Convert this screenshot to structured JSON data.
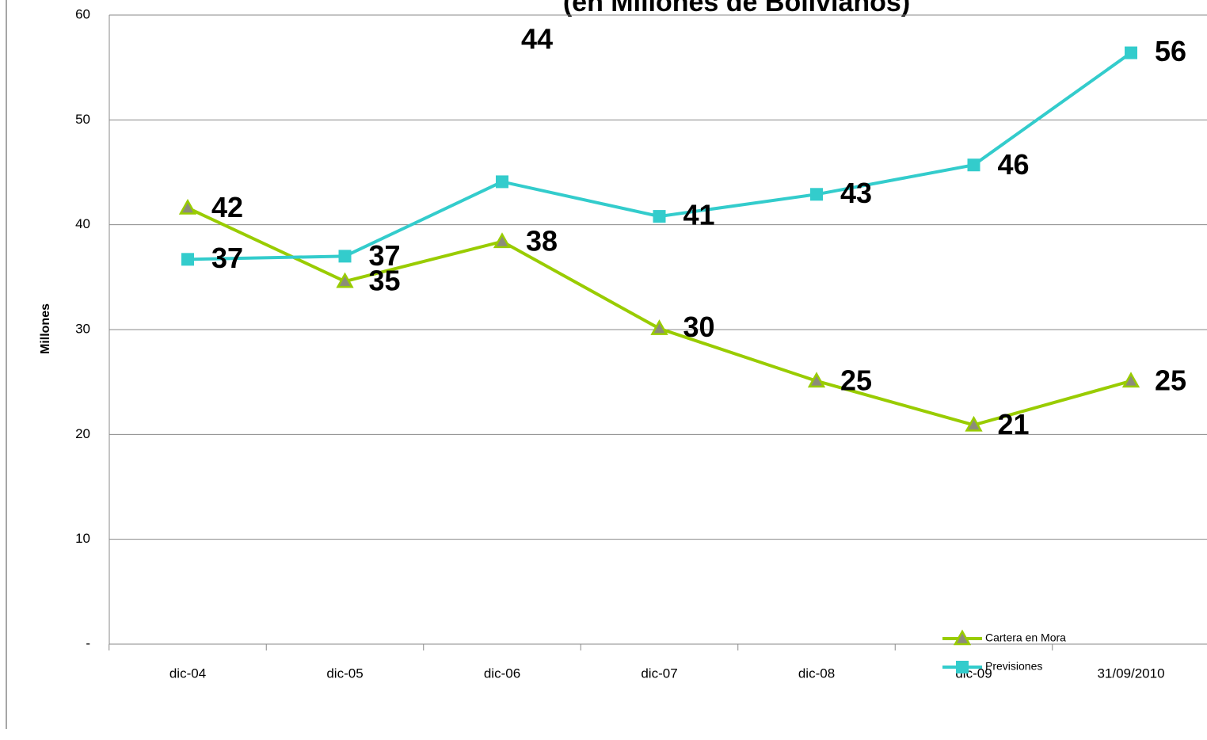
{
  "chart_data": {
    "type": "line",
    "title": "(en Millones de Bolivianos)",
    "ylabel": "Millones",
    "categories": [
      "dic-04",
      "dic-05",
      "dic-06",
      "dic-07",
      "dic-08",
      "dic-09",
      "31/09/2010"
    ],
    "series": [
      {
        "name": "Cartera en Mora",
        "color": "#99cc00",
        "marker": "triangle",
        "values": [
          41.6,
          34.6,
          38.4,
          30.1,
          25.1,
          20.9,
          25.1
        ],
        "value_labels": [
          "42",
          "35",
          "38",
          "30",
          "25",
          "21",
          "25"
        ]
      },
      {
        "name": "Previsiones",
        "color": "#33cccc",
        "marker": "square",
        "values": [
          36.7,
          37.0,
          44.1,
          40.8,
          42.9,
          45.7,
          56.4
        ],
        "value_labels": [
          "37",
          "37",
          "44",
          "41",
          "43",
          "46",
          "56"
        ]
      }
    ],
    "ylim": [
      0,
      60
    ],
    "yticks": [
      {
        "value": 0,
        "label": "-"
      },
      10,
      20,
      30,
      40,
      50,
      60
    ],
    "grid": true,
    "legend": "lower right"
  }
}
